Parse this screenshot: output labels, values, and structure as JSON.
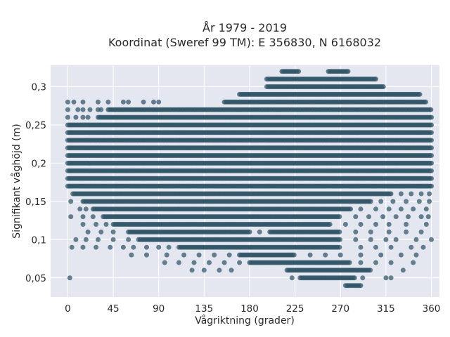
{
  "chart_data": {
    "type": "scatter",
    "title": "År 1979 - 2019",
    "subtitle": "Koordinat (Sweref 99 TM): E 356830, N 6168032",
    "xlabel": "Vågriktning (grader)",
    "ylabel": "Signifikant våghöjd (m)",
    "xlim": [
      -17,
      368
    ],
    "ylim": [
      0.025,
      0.328
    ],
    "x_ticks": [
      0,
      45,
      90,
      135,
      180,
      225,
      270,
      315,
      360
    ],
    "x_tick_labels": [
      "0",
      "45",
      "90",
      "135",
      "180",
      "225",
      "270",
      "315",
      "360"
    ],
    "y_ticks": [
      0.05,
      0.1,
      0.15,
      0.2,
      0.25,
      0.3
    ],
    "y_tick_labels": [
      "0,05",
      "0,1",
      "0,15",
      "0,2",
      "0,25",
      "0,3"
    ],
    "grid": true,
    "point_color": "#2f5566",
    "background_color": "#e5e7f0",
    "series": [
      {
        "bands": [
          {
            "y": 0.32,
            "dense": [
              [
                212,
                229
              ],
              [
                258,
                278
              ]
            ],
            "sparse": []
          },
          {
            "y": 0.31,
            "dense": [
              [
                197,
                306
              ]
            ],
            "sparse": []
          },
          {
            "y": 0.3,
            "dense": [
              [
                197,
                313
              ]
            ],
            "sparse": []
          },
          {
            "y": 0.29,
            "dense": [
              [
                170,
                349
              ]
            ],
            "sparse": []
          },
          {
            "y": 0.28,
            "dense": [
              [
                155,
                355
              ]
            ],
            "sparse": [
              0,
              6,
              15,
              30,
              40,
              55,
              60,
              75,
              85,
              90
            ]
          },
          {
            "y": 0.27,
            "dense": [
              [
                40,
                360
              ]
            ],
            "sparse": [
              0,
              10,
              15,
              22,
              30,
              33
            ]
          },
          {
            "y": 0.26,
            "dense": [
              [
                30,
                360
              ]
            ],
            "sparse": [
              0,
              8,
              15,
              20
            ]
          },
          {
            "y": 0.25,
            "dense": [
              [
                0,
                360
              ]
            ],
            "sparse": []
          },
          {
            "y": 0.24,
            "dense": [
              [
                0,
                360
              ]
            ],
            "sparse": []
          },
          {
            "y": 0.23,
            "dense": [
              [
                0,
                360
              ]
            ],
            "sparse": []
          },
          {
            "y": 0.22,
            "dense": [
              [
                0,
                360
              ]
            ],
            "sparse": []
          },
          {
            "y": 0.21,
            "dense": [
              [
                0,
                360
              ]
            ],
            "sparse": []
          },
          {
            "y": 0.2,
            "dense": [
              [
                0,
                360
              ]
            ],
            "sparse": []
          },
          {
            "y": 0.19,
            "dense": [
              [
                0,
                360
              ]
            ],
            "sparse": []
          },
          {
            "y": 0.18,
            "dense": [
              [
                0,
                360
              ]
            ],
            "sparse": []
          },
          {
            "y": 0.17,
            "dense": [
              [
                0,
                360
              ]
            ],
            "sparse": []
          },
          {
            "y": 0.16,
            "dense": [
              [
                5,
                320
              ]
            ],
            "sparse": [
              330,
              340,
              350,
              358
            ]
          },
          {
            "y": 0.15,
            "dense": [
              [
                15,
                300
              ]
            ],
            "sparse": [
              3,
              310,
              322,
              335,
              348,
              358
            ]
          },
          {
            "y": 0.14,
            "dense": [
              [
                25,
                280
              ]
            ],
            "sparse": [
              12,
              18,
              290,
              305,
              318,
              330,
              342,
              355
            ]
          },
          {
            "y": 0.13,
            "dense": [
              [
                35,
                270
              ]
            ],
            "sparse": [
              3,
              15,
              25,
              285,
              298,
              312,
              325,
              337,
              350,
              357
            ]
          },
          {
            "y": 0.12,
            "dense": [
              [
                45,
                260
              ]
            ],
            "sparse": [
              15,
              28,
              38,
              275,
              290,
              305,
              318,
              335,
              355
            ]
          },
          {
            "y": 0.11,
            "dense": [
              [
                60,
                180
              ],
              [
                200,
                270
              ]
            ],
            "sparse": [
              20,
              33,
              45,
              190,
              285,
              300,
              318,
              335,
              350
            ]
          },
          {
            "y": 0.1,
            "dense": [
              [
                70,
                270
              ]
            ],
            "sparse": [
              8,
              18,
              30,
              45,
              60,
              285,
              300,
              315,
              325,
              345,
              360
            ]
          },
          {
            "y": 0.09,
            "dense": [
              [
                110,
                270
              ]
            ],
            "sparse": [
              4,
              15,
              28,
              42,
              55,
              65,
              78,
              90,
              100,
              290,
              305,
              320,
              340,
              352
            ]
          },
          {
            "y": 0.08,
            "dense": [
              [
                170,
                225
              ]
            ],
            "sparse": [
              63,
              78,
              98,
              115,
              130,
              145,
              160,
              240,
              255,
              270,
              290,
              310,
              330,
              345
            ]
          },
          {
            "y": 0.07,
            "dense": [
              [
                180,
                280
              ]
            ],
            "sparse": [
              96,
              110,
              125,
              140,
              155,
              170,
              290,
              305,
              320,
              342
            ]
          },
          {
            "y": 0.06,
            "dense": [
              [
                217,
                300
              ]
            ],
            "sparse": [
              123,
              135,
              150,
              162,
              332
            ]
          },
          {
            "y": 0.05,
            "dense": [
              [
                230,
                285
              ]
            ],
            "sparse": [
              2,
              222,
              292,
              315,
              320
            ]
          },
          {
            "y": 0.04,
            "dense": [
              [
                275,
                290
              ]
            ],
            "sparse": []
          }
        ]
      }
    ]
  }
}
